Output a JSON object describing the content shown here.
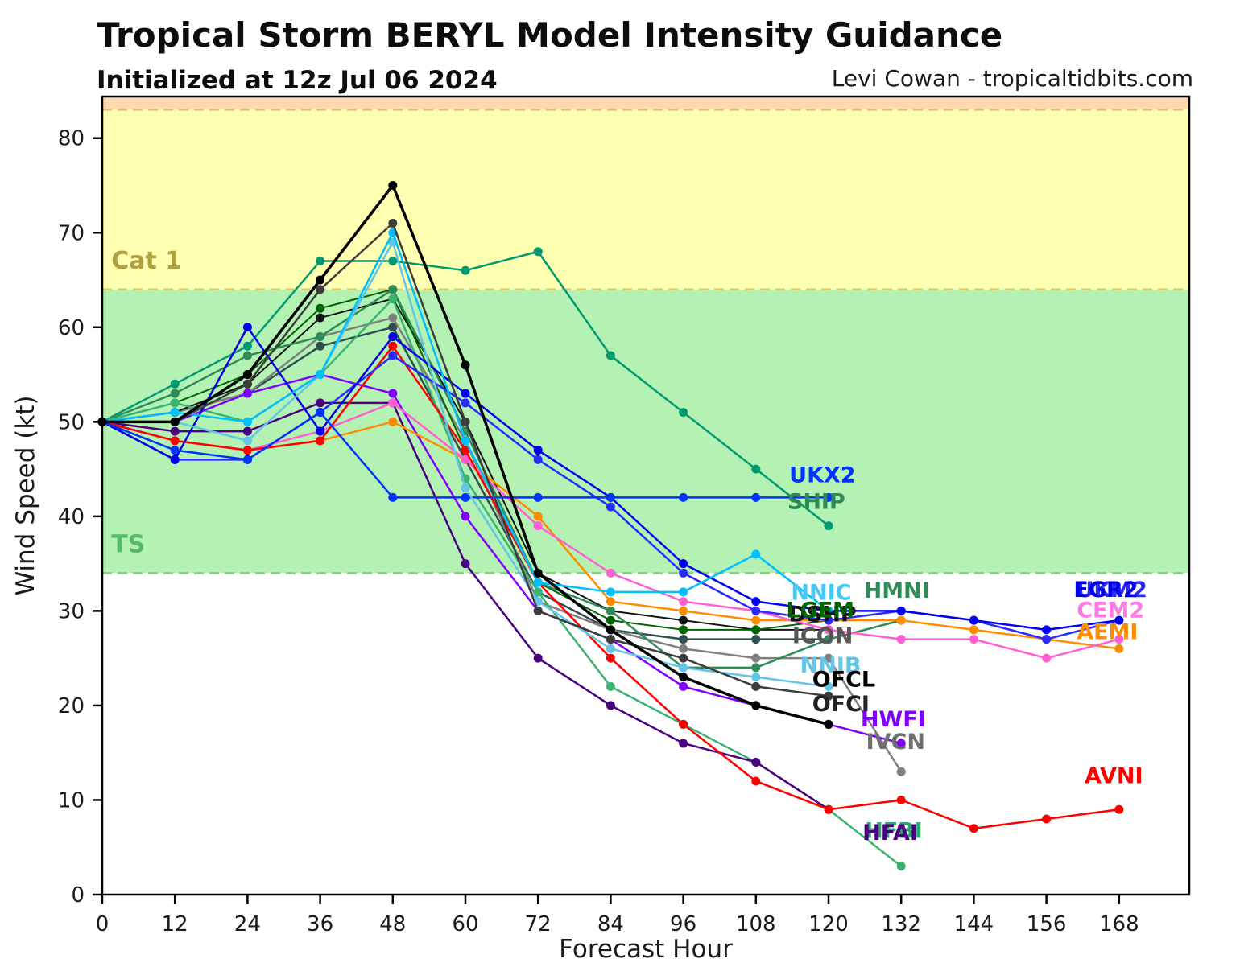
{
  "header": {
    "title": "Tropical Storm BERYL Model Intensity Guidance",
    "subtitle": "Initialized at 12z Jul 06 2024",
    "credit": "Levi Cowan - tropicaltidbits.com"
  },
  "chart_data": {
    "type": "line",
    "title": "Tropical Storm BERYL Model Intensity Guidance",
    "xlabel": "Forecast Hour",
    "ylabel": "Wind Speed (kt)",
    "xlim": [
      0,
      179.6
    ],
    "ylim": [
      0,
      84.4
    ],
    "x_ticks": [
      0,
      12,
      24,
      36,
      48,
      60,
      72,
      84,
      96,
      108,
      120,
      132,
      144,
      156,
      168
    ],
    "y_ticks": [
      0,
      10,
      20,
      30,
      40,
      50,
      60,
      70,
      80
    ],
    "grid": false,
    "legend_position": "inline-labels-at-line-ends",
    "bands": [
      {
        "name": "cat2-zone",
        "from": 83,
        "to": 84.4,
        "color": "#ffd9ae"
      },
      {
        "name": "cat1-zone",
        "from": 64,
        "to": 83,
        "color": "#ffffb2"
      },
      {
        "name": "ts-zone",
        "from": 34,
        "to": 64,
        "color": "#b4f2b4"
      },
      {
        "name": "below-ts",
        "from": 0,
        "to": 34,
        "color": "#ffffff"
      }
    ],
    "threshold_lines": [
      {
        "value": 83,
        "color": "#dfc187"
      },
      {
        "value": 64,
        "color": "#cfcf74"
      },
      {
        "value": 34,
        "color": "#82d282"
      }
    ],
    "zone_labels": [
      {
        "label": "Cat 1",
        "x": 1.5,
        "y": 66.2,
        "color": "#b0a040"
      },
      {
        "label": "TS",
        "x": 1.5,
        "y": 36.2,
        "color": "#55bb66"
      }
    ],
    "series": [
      {
        "name": "ICON",
        "color": "#2f4f4f",
        "width": 2.5,
        "hours": [
          0,
          12,
          24,
          36,
          48,
          60,
          72,
          84,
          96,
          108,
          120
        ],
        "values": [
          50,
          51,
          53,
          58,
          60,
          46,
          32,
          28,
          27,
          27,
          27
        ],
        "label": {
          "x": 114.0,
          "y": 26.6,
          "color": "#555555"
        }
      },
      {
        "name": "IVCN",
        "color": "#808080",
        "width": 2.5,
        "hours": [
          0,
          12,
          24,
          36,
          48,
          60,
          72,
          84,
          96,
          108,
          120,
          132
        ],
        "values": [
          50,
          51,
          53,
          59,
          61,
          48,
          31,
          28,
          26,
          25,
          25,
          13
        ],
        "label": {
          "x": 126.2,
          "y": 15.4,
          "color": "#6e6e6e"
        }
      },
      {
        "name": "DSHP",
        "color": "#141414",
        "width": 2,
        "hours": [
          0,
          12,
          24,
          36,
          48,
          60,
          72,
          84,
          96,
          108,
          120
        ],
        "values": [
          50,
          51,
          54,
          61,
          63,
          50,
          34,
          30,
          29,
          28,
          28
        ],
        "label": {
          "x": 113.4,
          "y": 28.9,
          "color": "#141414"
        }
      },
      {
        "name": "LGEM",
        "color": "#006400",
        "width": 2,
        "hours": [
          0,
          12,
          24,
          36,
          48,
          60,
          72,
          84,
          96,
          108,
          120
        ],
        "values": [
          50,
          52,
          55,
          62,
          64,
          47,
          33,
          29,
          28,
          28,
          29
        ],
        "label": {
          "x": 113.0,
          "y": 29.3,
          "color": "#006400"
        }
      },
      {
        "name": "SHIP",
        "color": "#009970",
        "width": 2.5,
        "hours": [
          0,
          12,
          24,
          36,
          48,
          60,
          72,
          84,
          96,
          108,
          120
        ],
        "values": [
          50,
          54,
          58,
          67,
          67,
          66,
          68,
          57,
          51,
          45,
          39
        ],
        "label": {
          "x": 113.2,
          "y": 40.8,
          "color": "#2e8b57"
        }
      },
      {
        "name": "HMNI",
        "color": "#2e8b57",
        "width": 2.5,
        "hours": [
          0,
          12,
          24,
          36,
          48,
          60,
          72,
          84,
          96,
          108,
          120,
          132
        ],
        "values": [
          50,
          53,
          57,
          59,
          64,
          49,
          33,
          30,
          24,
          24,
          27,
          29
        ],
        "label": {
          "x": 125.8,
          "y": 31.4,
          "color": "#2e8b57"
        }
      },
      {
        "name": "HFBI",
        "color": "#3cb371",
        "width": 2.5,
        "hours": [
          0,
          12,
          24,
          36,
          48,
          60,
          72,
          84,
          96,
          108,
          120,
          132
        ],
        "values": [
          50,
          52,
          50,
          55,
          63,
          44,
          32,
          22,
          18,
          14,
          9,
          3
        ],
        "label": {
          "x": 126.0,
          "y": 6.0,
          "color": "#2aa870"
        }
      },
      {
        "name": "HFAI",
        "color": "#4b0082",
        "width": 2.5,
        "hours": [
          0,
          12,
          24,
          36,
          48,
          60,
          72,
          84,
          96,
          108,
          120
        ],
        "values": [
          50,
          49,
          49,
          52,
          52,
          35,
          25,
          20,
          16,
          14,
          9
        ],
        "label": {
          "x": 125.6,
          "y": 5.8,
          "color": "#4b0082"
        }
      },
      {
        "name": "HWFI",
        "color": "#7f00ff",
        "width": 2.5,
        "hours": [
          0,
          12,
          24,
          36,
          48,
          60,
          72,
          84,
          96,
          108,
          120,
          132
        ],
        "values": [
          50,
          50,
          53,
          55,
          53,
          40,
          30,
          27,
          22,
          20,
          18,
          16
        ],
        "label": {
          "x": 125.3,
          "y": 17.8,
          "color": "#7f00ff"
        }
      },
      {
        "name": "AEMI",
        "color": "#ff8c00",
        "width": 2.5,
        "hours": [
          0,
          12,
          24,
          36,
          48,
          60,
          72,
          84,
          96,
          108,
          120,
          132,
          144,
          156,
          168
        ],
        "values": [
          50,
          48,
          47,
          48,
          50,
          46,
          40,
          31,
          30,
          29,
          29,
          29,
          28,
          27,
          26
        ],
        "label": {
          "x": 161.0,
          "y": 27.0,
          "color": "#ff8c00"
        }
      },
      {
        "name": "CEM2",
        "color": "#ff5fd0",
        "width": 2.5,
        "hours": [
          0,
          12,
          24,
          36,
          48,
          60,
          72,
          84,
          96,
          108,
          120,
          132,
          144,
          156,
          168
        ],
        "values": [
          50,
          48,
          47,
          49,
          52,
          46,
          39,
          34,
          31,
          30,
          28,
          27,
          27,
          25,
          27
        ],
        "label": {
          "x": 161.0,
          "y": 29.3,
          "color": "#ff7ae0"
        }
      },
      {
        "name": "AVNI",
        "color": "#ff0000",
        "width": 2.5,
        "hours": [
          0,
          12,
          24,
          36,
          48,
          60,
          72,
          84,
          96,
          108,
          120,
          132,
          144,
          156,
          168
        ],
        "values": [
          50,
          48,
          47,
          48,
          58,
          47,
          33,
          25,
          18,
          12,
          9,
          10,
          7,
          8,
          9
        ],
        "label": {
          "x": 162.3,
          "y": 11.8,
          "color": "#ff0000"
        }
      },
      {
        "name": "UKM2",
        "color": "#2a2aff",
        "width": 2.5,
        "hours": [
          0,
          12,
          24,
          36,
          48,
          60,
          72,
          84,
          96,
          108,
          120,
          132,
          144,
          156,
          168
        ],
        "values": [
          50,
          46,
          46,
          51,
          57,
          52,
          46,
          41,
          34,
          30,
          29,
          30,
          29,
          27,
          29
        ],
        "label": {
          "x": 160.9,
          "y": 31.5,
          "color": "#2a2aff"
        }
      },
      {
        "name": "EGR2",
        "color": "#0000ee",
        "width": 2.5,
        "hours": [
          0,
          12,
          24,
          36,
          48,
          60,
          72,
          84,
          96,
          108,
          120,
          132,
          144,
          156,
          168
        ],
        "values": [
          50,
          46,
          60,
          49,
          59,
          53,
          47,
          42,
          35,
          31,
          30,
          30,
          29,
          28,
          29
        ],
        "label": {
          "x": 160.5,
          "y": 31.5,
          "color": "#0000ee"
        }
      },
      {
        "name": "UKX2",
        "color": "#0033ff",
        "width": 2.5,
        "hours": [
          0,
          12,
          24,
          36,
          48,
          60,
          72,
          84,
          96,
          108,
          120
        ],
        "values": [
          50,
          47,
          46,
          51,
          42,
          42,
          42,
          42,
          42,
          42,
          42
        ],
        "label": {
          "x": 113.5,
          "y": 43.6,
          "color": "#0033ff"
        }
      },
      {
        "name": "NNIB",
        "color": "#63c5e8",
        "width": 2.5,
        "hours": [
          0,
          12,
          24,
          36,
          48,
          60,
          72,
          84,
          96,
          108,
          120
        ],
        "values": [
          50,
          50,
          48,
          55,
          69,
          43,
          31,
          26,
          24,
          23,
          22
        ],
        "label": {
          "x": 115.3,
          "y": 23.5,
          "color": "#63c5e8"
        }
      },
      {
        "name": "NNIC",
        "color": "#00bfff",
        "width": 2.5,
        "hours": [
          0,
          12,
          24,
          36,
          48,
          60,
          72,
          84,
          96,
          108,
          120
        ],
        "values": [
          50,
          51,
          50,
          55,
          70,
          48,
          33,
          32,
          32,
          36,
          30
        ],
        "label": {
          "x": 113.8,
          "y": 31.2,
          "color": "#44c8f5"
        }
      },
      {
        "name": "OFCI",
        "color": "#3c3c3c",
        "width": 2.5,
        "hours": [
          0,
          12,
          24,
          36,
          48,
          60,
          72,
          84,
          96,
          108,
          120
        ],
        "values": [
          50,
          50,
          54,
          64,
          71,
          50,
          30,
          27,
          25,
          22,
          21
        ],
        "label": {
          "x": 117.3,
          "y": 19.4,
          "color": "#222222"
        }
      },
      {
        "name": "OFCL",
        "color": "#000000",
        "width": 3.5,
        "hours": [
          0,
          12,
          24,
          36,
          48,
          60,
          72,
          84,
          96,
          108,
          120
        ],
        "values": [
          50,
          50,
          55,
          65,
          75,
          56,
          34,
          28,
          23,
          20,
          18
        ],
        "label": {
          "x": 117.3,
          "y": 22.0,
          "color": "#000000"
        }
      }
    ]
  }
}
